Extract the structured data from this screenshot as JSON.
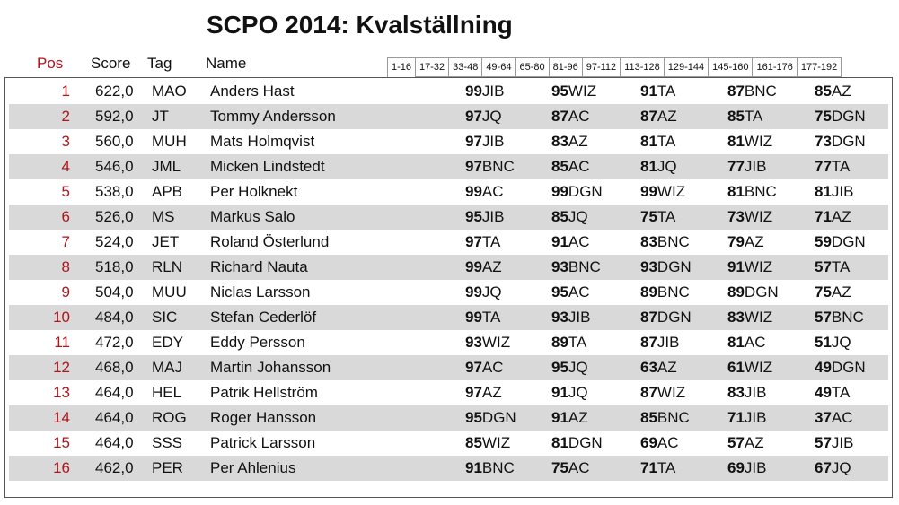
{
  "title": "SCPO 2014: Kvalställning",
  "headers": {
    "pos": "Pos",
    "score": "Score",
    "tag": "Tag",
    "name": "Name"
  },
  "tabs": [
    "1-16",
    "17-32",
    "33-48",
    "49-64",
    "65-80",
    "81-96",
    "97-112",
    "113-128",
    "129-144",
    "145-160",
    "161-176",
    "177-192"
  ],
  "active_tab": "1-16",
  "colors": {
    "pos": "#b0141b",
    "shade": "#d9d9d9"
  },
  "rows": [
    {
      "pos": "1",
      "score": "622,0",
      "tag": "MAO",
      "name": "Anders Hast",
      "results": [
        [
          "99",
          "JIB"
        ],
        [
          "95",
          "WIZ"
        ],
        [
          "91",
          "TA"
        ],
        [
          "87",
          "BNC"
        ],
        [
          "85",
          "AZ"
        ]
      ]
    },
    {
      "pos": "2",
      "score": "592,0",
      "tag": "JT",
      "name": "Tommy Andersson",
      "results": [
        [
          "97",
          "JQ"
        ],
        [
          "87",
          "AC"
        ],
        [
          "87",
          "AZ"
        ],
        [
          "85",
          "TA"
        ],
        [
          "75",
          "DGN"
        ]
      ]
    },
    {
      "pos": "3",
      "score": "560,0",
      "tag": "MUH",
      "name": "Mats Holmqvist",
      "results": [
        [
          "97",
          "JIB"
        ],
        [
          "83",
          "AZ"
        ],
        [
          "81",
          "TA"
        ],
        [
          "81",
          "WIZ"
        ],
        [
          "73",
          "DGN"
        ]
      ]
    },
    {
      "pos": "4",
      "score": "546,0",
      "tag": "JML",
      "name": "Micken Lindstedt",
      "results": [
        [
          "97",
          "BNC"
        ],
        [
          "85",
          "AC"
        ],
        [
          "81",
          "JQ"
        ],
        [
          "77",
          "JIB"
        ],
        [
          "77",
          "TA"
        ]
      ]
    },
    {
      "pos": "5",
      "score": "538,0",
      "tag": "APB",
      "name": "Per Holknekt",
      "results": [
        [
          "99",
          "AC"
        ],
        [
          "99",
          "DGN"
        ],
        [
          "99",
          "WIZ"
        ],
        [
          "81",
          "BNC"
        ],
        [
          "81",
          "JIB"
        ]
      ]
    },
    {
      "pos": "6",
      "score": "526,0",
      "tag": "MS",
      "name": "Markus Salo",
      "results": [
        [
          "95",
          "JIB"
        ],
        [
          "85",
          "JQ"
        ],
        [
          "75",
          "TA"
        ],
        [
          "73",
          "WIZ"
        ],
        [
          "71",
          "AZ"
        ]
      ]
    },
    {
      "pos": "7",
      "score": "524,0",
      "tag": "JET",
      "name": "Roland Österlund",
      "results": [
        [
          "97",
          "TA"
        ],
        [
          "91",
          "AC"
        ],
        [
          "83",
          "BNC"
        ],
        [
          "79",
          "AZ"
        ],
        [
          "59",
          "DGN"
        ]
      ]
    },
    {
      "pos": "8",
      "score": "518,0",
      "tag": "RLN",
      "name": "Richard Nauta",
      "results": [
        [
          "99",
          "AZ"
        ],
        [
          "93",
          "BNC"
        ],
        [
          "93",
          "DGN"
        ],
        [
          "91",
          "WIZ"
        ],
        [
          "57",
          "TA"
        ]
      ]
    },
    {
      "pos": "9",
      "score": "504,0",
      "tag": "MUU",
      "name": "Niclas Larsson",
      "results": [
        [
          "99",
          "JQ"
        ],
        [
          "95",
          "AC"
        ],
        [
          "89",
          "BNC"
        ],
        [
          "89",
          "DGN"
        ],
        [
          "75",
          "AZ"
        ]
      ]
    },
    {
      "pos": "10",
      "score": "484,0",
      "tag": "SIC",
      "name": "Stefan Cederlöf",
      "results": [
        [
          "99",
          "TA"
        ],
        [
          "93",
          "JIB"
        ],
        [
          "87",
          "DGN"
        ],
        [
          "83",
          "WIZ"
        ],
        [
          "57",
          "BNC"
        ]
      ]
    },
    {
      "pos": "11",
      "score": "472,0",
      "tag": "EDY",
      "name": "Eddy Persson",
      "results": [
        [
          "93",
          "WIZ"
        ],
        [
          "89",
          "TA"
        ],
        [
          "87",
          "JIB"
        ],
        [
          "81",
          "AC"
        ],
        [
          "51",
          "JQ"
        ]
      ]
    },
    {
      "pos": "12",
      "score": "468,0",
      "tag": "MAJ",
      "name": "Martin Johansson",
      "results": [
        [
          "97",
          "AC"
        ],
        [
          "95",
          "JQ"
        ],
        [
          "63",
          "AZ"
        ],
        [
          "61",
          "WIZ"
        ],
        [
          "49",
          "DGN"
        ]
      ]
    },
    {
      "pos": "13",
      "score": "464,0",
      "tag": "HEL",
      "name": "Patrik Hellström",
      "results": [
        [
          "97",
          "AZ"
        ],
        [
          "91",
          "JQ"
        ],
        [
          "87",
          "WIZ"
        ],
        [
          "83",
          "JIB"
        ],
        [
          "49",
          "TA"
        ]
      ]
    },
    {
      "pos": "14",
      "score": "464,0",
      "tag": "ROG",
      "name": "Roger Hansson",
      "results": [
        [
          "95",
          "DGN"
        ],
        [
          "91",
          "AZ"
        ],
        [
          "85",
          "BNC"
        ],
        [
          "71",
          "JIB"
        ],
        [
          "37",
          "AC"
        ]
      ]
    },
    {
      "pos": "15",
      "score": "464,0",
      "tag": "SSS",
      "name": "Patrick Larsson",
      "results": [
        [
          "85",
          "WIZ"
        ],
        [
          "81",
          "DGN"
        ],
        [
          "69",
          "AC"
        ],
        [
          "57",
          "AZ"
        ],
        [
          "57",
          "JIB"
        ]
      ]
    },
    {
      "pos": "16",
      "score": "462,0",
      "tag": "PER",
      "name": "Per Ahlenius",
      "results": [
        [
          "91",
          "BNC"
        ],
        [
          "75",
          "AC"
        ],
        [
          "71",
          "TA"
        ],
        [
          "69",
          "JIB"
        ],
        [
          "67",
          "JQ"
        ]
      ]
    }
  ]
}
